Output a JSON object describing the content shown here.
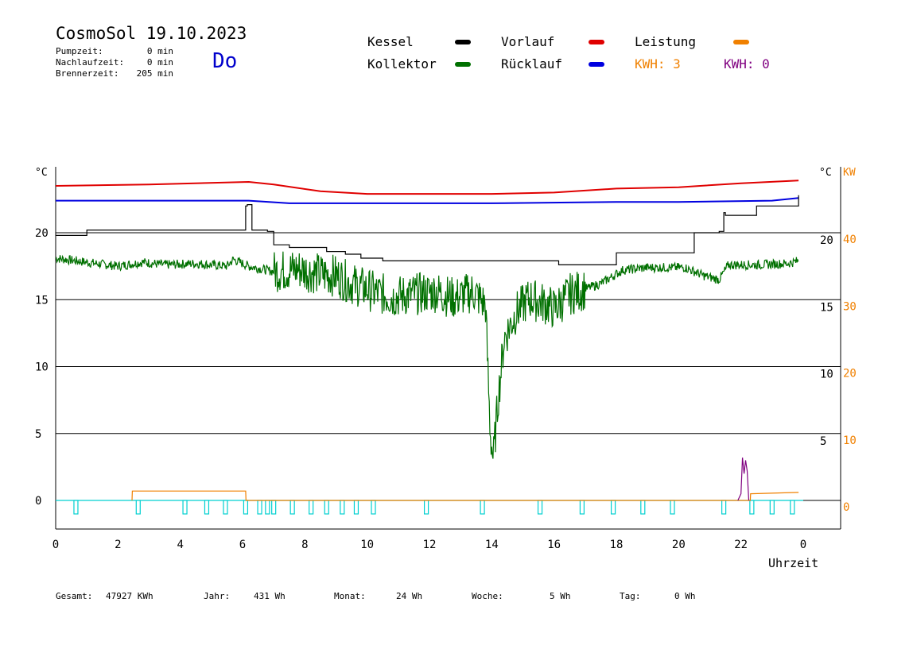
{
  "header": {
    "title": "CosmoSol 19.10.2023",
    "day": "Do",
    "stats": [
      {
        "label": "Pumpzeit:",
        "value": "0 min"
      },
      {
        "label": "Nachlaufzeit:",
        "value": "0 min"
      },
      {
        "label": "Brennerzeit:",
        "value": "205 min"
      }
    ]
  },
  "legend": {
    "kessel": "Kessel",
    "kollektor": "Kollektor",
    "vorlauf": "Vorlauf",
    "ruecklauf": "Rücklauf",
    "leistung": "Leistung",
    "kwh1": "KWH: 3",
    "kwh2": "KWH: 0"
  },
  "colors": {
    "kessel": "#000000",
    "kollektor": "#007000",
    "vorlauf": "#e00000",
    "ruecklauf": "#0000e0",
    "leistung": "#f08000",
    "kwh2": "#800080",
    "pump": "#00d0d0",
    "day": "#0000cc"
  },
  "footer": {
    "gesamt_label": "Gesamt:",
    "gesamt_value": "47927 KWh",
    "jahr_label": "Jahr:",
    "jahr_value": "431 Wh",
    "monat_label": "Monat:",
    "monat_value": "24 Wh",
    "woche_label": "Woche:",
    "woche_value": "5 Wh",
    "tag_label": "Tag:",
    "tag_value": "0 Wh"
  },
  "chart_data": {
    "type": "line",
    "xlabel": "Uhrzeit",
    "xlim": [
      0,
      24
    ],
    "x_ticks": [
      "0",
      "2",
      "4",
      "6",
      "8",
      "10",
      "12",
      "14",
      "16",
      "18",
      "20",
      "22",
      "0"
    ],
    "y_left": {
      "unit": "°C",
      "ticks": [
        "0",
        "5",
        "10",
        "15",
        "20"
      ],
      "ylim": [
        -2,
        25
      ]
    },
    "y_right_temp": {
      "unit": "°C",
      "ticks": [
        "5",
        "10",
        "15",
        "20"
      ]
    },
    "y_right_kw": {
      "unit": "KW",
      "ticks": [
        "0",
        "10",
        "20",
        "30",
        "40"
      ]
    },
    "grid": "horizontal",
    "series": [
      {
        "name": "Vorlauf",
        "key": "vorlauf",
        "x": [
          0,
          3,
          6.2,
          7,
          8.5,
          10,
          12,
          14,
          16,
          18,
          20,
          22,
          23.85
        ],
        "y": [
          23.5,
          23.6,
          23.8,
          23.6,
          23.1,
          22.9,
          22.9,
          22.9,
          23.0,
          23.3,
          23.4,
          23.7,
          23.9
        ]
      },
      {
        "name": "Rücklauf",
        "key": "ruecklauf",
        "x": [
          0,
          6.2,
          7.5,
          10,
          14,
          18,
          20,
          23,
          23.85
        ],
        "y": [
          22.4,
          22.4,
          22.2,
          22.2,
          22.2,
          22.3,
          22.3,
          22.4,
          22.6
        ]
      },
      {
        "name": "Kessel",
        "key": "kessel",
        "x": [
          0,
          1,
          3.5,
          6.1,
          6.15,
          6.3,
          6.8,
          7.0,
          7.5,
          8.7,
          9.3,
          9.8,
          10.5,
          16.1,
          16.15,
          18,
          20.5,
          21.3,
          21.45,
          21.5,
          22.5,
          23.85
        ],
        "y": [
          19.8,
          20.2,
          20.2,
          22.0,
          22.1,
          20.2,
          20.1,
          19.1,
          18.9,
          18.6,
          18.4,
          18.1,
          17.9,
          17.9,
          17.6,
          18.5,
          20.0,
          20.1,
          21.5,
          21.3,
          22.0,
          22.8
        ],
        "step": true
      },
      {
        "name": "Kollektor",
        "key": "kollektor",
        "x": [
          0,
          1.3,
          2,
          2.8,
          3.5,
          4.5,
          5.5,
          5.7,
          6.2,
          7,
          7.8,
          8.5,
          9,
          9.5,
          10.2,
          10.8,
          11.5,
          12.2,
          12.8,
          13.4,
          13.8,
          13.95,
          14.05,
          14.2,
          14.4,
          14.8,
          15.2,
          15.8,
          16,
          16.5,
          17.5,
          18.2,
          19,
          19.8,
          20.2,
          20.8,
          21.1,
          21.3,
          21.6,
          22.5,
          23.5,
          23.85
        ],
        "y": [
          18.1,
          17.7,
          17.5,
          17.8,
          17.6,
          17.7,
          17.5,
          18.0,
          17.5,
          17.1,
          17.3,
          16.9,
          16.8,
          16.2,
          15.6,
          15.2,
          15.4,
          15.6,
          15.1,
          15.6,
          14.6,
          5.1,
          3.0,
          7.5,
          12.1,
          14.1,
          15.1,
          14.6,
          14.3,
          15.4,
          16.2,
          17.2,
          17.4,
          17.4,
          17.4,
          16.8,
          16.6,
          16.5,
          17.6,
          17.6,
          17.7,
          17.9
        ],
        "noise": true
      },
      {
        "name": "Leistung",
        "key": "leistung",
        "x": [
          2.45,
          2.46,
          3.5,
          6.1,
          6.11,
          22.3,
          22.31,
          23.85
        ],
        "y": [
          0,
          0.7,
          0.7,
          0.7,
          0,
          0,
          0.5,
          0.6
        ]
      },
      {
        "name": "KWH",
        "key": "kwh2",
        "x": [
          21.9,
          22.0,
          22.05,
          22.1,
          22.15,
          22.2,
          22.25
        ],
        "y": [
          0,
          0.5,
          3.2,
          2.0,
          3.0,
          2.2,
          0
        ]
      }
    ],
    "pump_pulses": [
      0.65,
      2.65,
      4.15,
      4.85,
      5.45,
      6.1,
      6.55,
      6.8,
      7.0,
      7.6,
      8.2,
      8.7,
      9.2,
      9.65,
      10.2,
      11.9,
      13.7,
      15.55,
      16.9,
      17.9,
      18.85,
      19.8,
      21.45,
      22.35,
      23.0,
      23.65
    ]
  }
}
